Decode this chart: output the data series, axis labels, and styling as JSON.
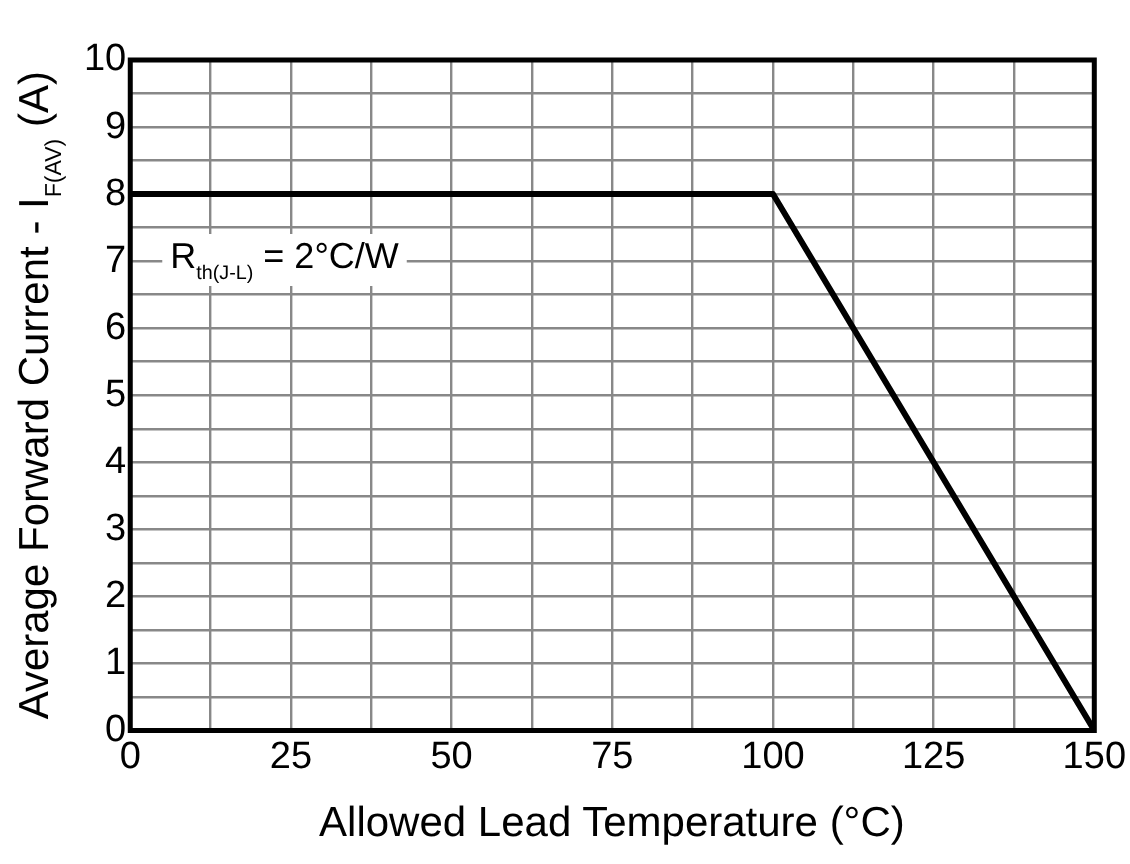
{
  "chart_data": {
    "type": "line",
    "xlabel": "Allowed Lead Temperature (°C)",
    "ylabel": "Average Forward Current - I$_{F(AV)}$ (A)",
    "x": [
      0,
      100,
      150
    ],
    "series": [
      {
        "color": "#000000",
        "values": [
          8,
          8,
          0
        ]
      }
    ],
    "xlim": [
      0,
      150
    ],
    "xticks": [
      0,
      {
        "value": 12.5,
        "label": null
      },
      25,
      {
        "value": 37.5,
        "label": null
      },
      50,
      {
        "value": 62.5,
        "label": null
      },
      75,
      {
        "value": 87.5,
        "label": null
      },
      100,
      {
        "value": 112.5,
        "label": null
      },
      125,
      {
        "value": 137.5,
        "label": null
      },
      150
    ],
    "ylim": [
      0,
      10
    ],
    "yticks": [
      0,
      {
        "value": 0.5,
        "label": null
      },
      1,
      {
        "value": 1.5,
        "label": null
      },
      2,
      {
        "value": 2.5,
        "label": null
      },
      3,
      {
        "value": 3.5,
        "label": null
      },
      4,
      {
        "value": 4.5,
        "label": null
      },
      5,
      {
        "value": 5.5,
        "label": null
      },
      6,
      {
        "value": 6.5,
        "label": null
      },
      7,
      {
        "value": 7.5,
        "label": null
      },
      8,
      {
        "value": 8.5,
        "label": null
      },
      9,
      {
        "value": 9.5,
        "label": null
      },
      10
    ],
    "grid": true,
    "marker": "none",
    "line_style": "solid",
    "annotations": [
      "R$_{th(J-L)}$ = 2°C/W"
    ]
  }
}
